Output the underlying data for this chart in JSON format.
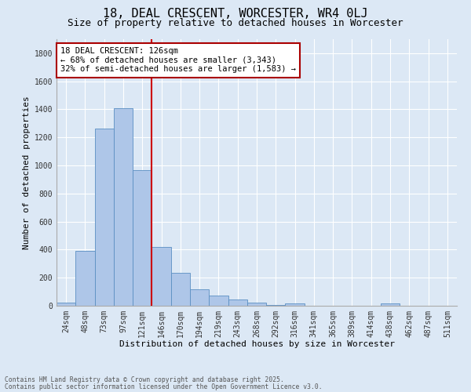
{
  "title1": "18, DEAL CRESCENT, WORCESTER, WR4 0LJ",
  "title2": "Size of property relative to detached houses in Worcester",
  "xlabel": "Distribution of detached houses by size in Worcester",
  "ylabel": "Number of detached properties",
  "categories": [
    "24sqm",
    "48sqm",
    "73sqm",
    "97sqm",
    "121sqm",
    "146sqm",
    "170sqm",
    "194sqm",
    "219sqm",
    "243sqm",
    "268sqm",
    "292sqm",
    "316sqm",
    "341sqm",
    "365sqm",
    "389sqm",
    "414sqm",
    "438sqm",
    "462sqm",
    "487sqm",
    "511sqm"
  ],
  "values": [
    25,
    390,
    1265,
    1410,
    965,
    420,
    235,
    120,
    70,
    45,
    25,
    3,
    15,
    2,
    1,
    0,
    0,
    15,
    0,
    0,
    0
  ],
  "bar_color": "#aec6e8",
  "bar_edge_color": "#5a8fc2",
  "bg_color": "#dce8f5",
  "grid_color": "#ffffff",
  "annotation_text": "18 DEAL CRESCENT: 126sqm\n← 68% of detached houses are smaller (3,343)\n32% of semi-detached houses are larger (1,583) →",
  "annotation_box_color": "#ffffff",
  "annotation_box_edge_color": "#aa0000",
  "red_line_x": 4.5,
  "ylim": [
    0,
    1900
  ],
  "yticks": [
    0,
    200,
    400,
    600,
    800,
    1000,
    1200,
    1400,
    1600,
    1800
  ],
  "footer_line1": "Contains HM Land Registry data © Crown copyright and database right 2025.",
  "footer_line2": "Contains public sector information licensed under the Open Government Licence v3.0.",
  "title_fontsize": 11,
  "subtitle_fontsize": 9,
  "tick_fontsize": 7,
  "ylabel_fontsize": 8,
  "xlabel_fontsize": 8,
  "annot_fontsize": 7.5
}
